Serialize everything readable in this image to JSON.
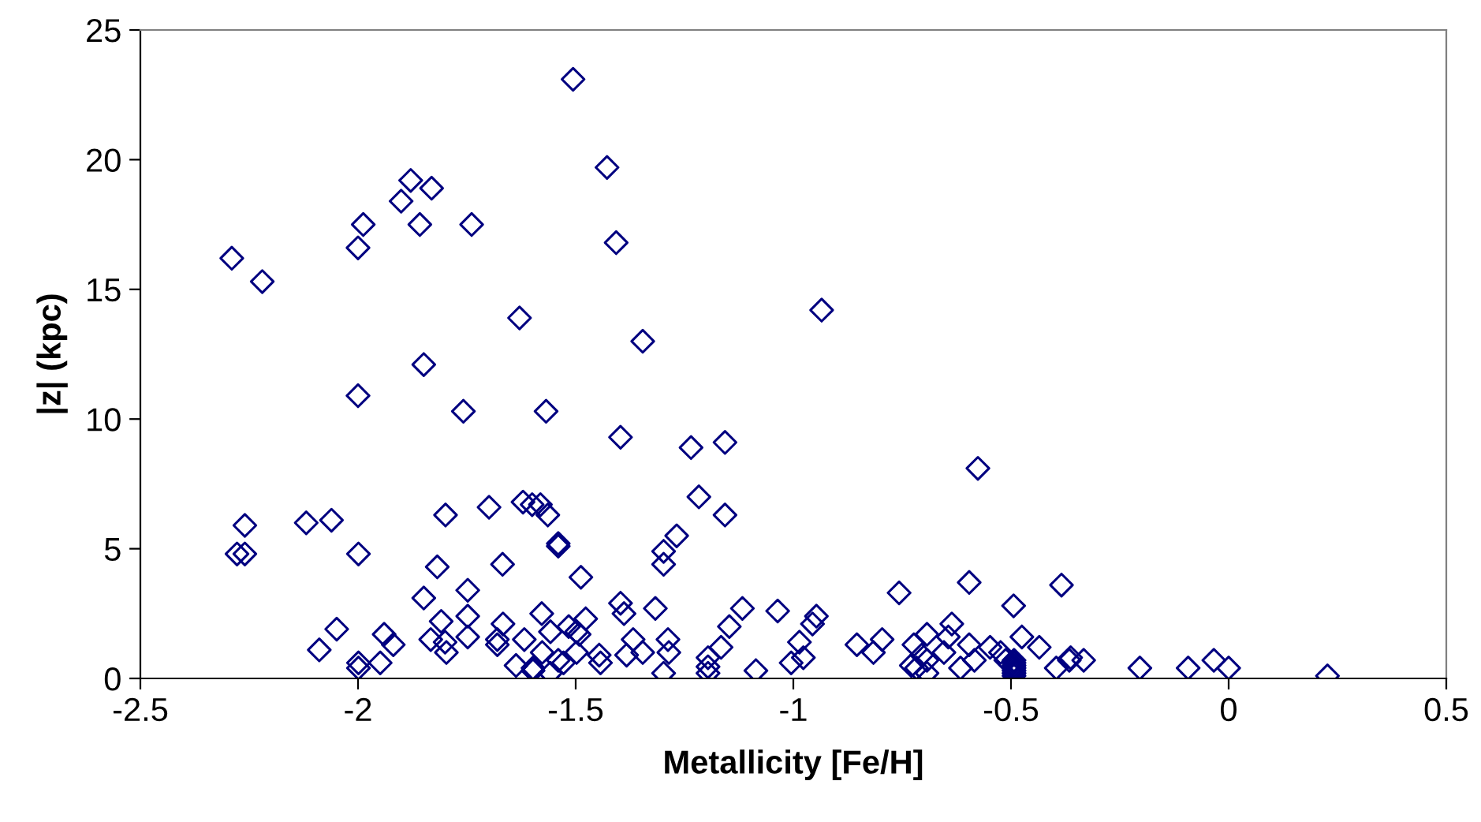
{
  "chart_data": {
    "type": "scatter",
    "xlabel": "Metallicity [Fe/H]",
    "ylabel": "|z| (kpc)",
    "xlim": [
      -2.5,
      0.5
    ],
    "xticks": [
      -2.5,
      -2,
      -1.5,
      -1,
      -0.5,
      0,
      0.5
    ],
    "ylim": [
      0,
      25
    ],
    "yticks": [
      0,
      5,
      10,
      15,
      20,
      25
    ],
    "grid": false,
    "marker": "diamond",
    "series": [
      {
        "color": "#000080",
        "x": [
          -1.506,
          -1.428,
          -1.407,
          -1.879,
          -1.831,
          -1.901,
          -1.988,
          -1.858,
          -1.739,
          -2.0,
          -2.29,
          -2.22,
          -1.629,
          -1.346,
          -1.849,
          -2.0,
          -1.758,
          -1.568,
          -1.397,
          -0.935,
          -1.235,
          -1.157,
          -2.26,
          -2.278,
          -2.26,
          -2.119,
          -2.061,
          -1.999,
          -1.799,
          -1.699,
          -1.621,
          -1.6,
          -1.581,
          -1.564,
          -1.54,
          -1.54,
          -1.818,
          -1.668,
          -1.488,
          -1.849,
          -1.748,
          -1.397,
          -1.389,
          -1.809,
          -1.748,
          -1.578,
          -1.477,
          -1.667,
          -2.049,
          -2.089,
          -1.94,
          -1.919,
          -1.833,
          -1.8,
          -1.797,
          -1.748,
          -1.68,
          -1.68,
          -1.618,
          -1.558,
          -1.516,
          -1.498,
          -1.492,
          -1.577,
          -1.54,
          -1.498,
          -1.446,
          -1.443,
          -1.383,
          -1.999,
          -1.999,
          -1.949,
          -1.637,
          -1.598,
          -1.598,
          -1.558,
          -1.528,
          -0.576,
          -1.217,
          -1.157,
          -1.268,
          -1.298,
          -1.298,
          -0.757,
          -0.596,
          -0.384,
          -1.317,
          -1.117,
          -1.036,
          -0.947,
          -0.956,
          -1.147,
          -1.166,
          -1.196,
          -1.196,
          -1.196,
          -1.086,
          -0.986,
          -1.005,
          -0.977,
          -1.368,
          -1.346,
          -1.288,
          -1.286,
          -1.298,
          -0.854,
          -0.816,
          -0.796,
          -0.723,
          -0.693,
          -0.636,
          -0.644,
          -0.654,
          -0.596,
          -0.584,
          -0.616,
          -0.729,
          -0.693,
          -0.693,
          -0.705,
          -0.717,
          -0.548,
          -0.524,
          -0.494,
          -0.475,
          -0.435,
          -0.396,
          -0.366,
          -0.493,
          -0.493,
          -0.493,
          -0.493,
          -0.493,
          -0.493,
          -0.493,
          -0.512,
          -0.363,
          -0.333,
          -0.204,
          -0.093,
          -0.034,
          0.0,
          0.227
        ],
        "values": [
          23.1,
          19.7,
          16.8,
          19.2,
          18.9,
          18.4,
          17.5,
          17.5,
          17.5,
          16.6,
          16.2,
          15.3,
          13.9,
          13.0,
          12.1,
          10.9,
          10.3,
          10.3,
          9.3,
          14.2,
          8.9,
          9.1,
          5.9,
          4.8,
          4.8,
          6.0,
          6.1,
          4.8,
          6.3,
          6.6,
          6.8,
          6.7,
          6.7,
          6.3,
          5.2,
          5.1,
          4.3,
          4.4,
          3.9,
          3.1,
          3.4,
          2.9,
          2.5,
          2.2,
          2.4,
          2.5,
          2.3,
          2.1,
          1.9,
          1.1,
          1.7,
          1.3,
          1.5,
          1.4,
          1.0,
          1.6,
          1.5,
          1.3,
          1.5,
          1.8,
          2.0,
          1.8,
          1.7,
          1.0,
          0.7,
          1.0,
          0.9,
          0.6,
          0.9,
          0.6,
          0.4,
          0.6,
          0.5,
          0.4,
          0.3,
          0.2,
          0.6,
          8.1,
          7.0,
          6.3,
          5.5,
          4.9,
          4.4,
          3.3,
          3.7,
          3.6,
          2.7,
          2.7,
          2.6,
          2.4,
          2.1,
          2.0,
          1.2,
          0.8,
          0.2,
          0.45,
          0.3,
          1.4,
          0.6,
          0.8,
          1.5,
          1.0,
          1.5,
          1.0,
          0.2,
          1.3,
          1.0,
          1.5,
          1.3,
          1.7,
          2.1,
          1.6,
          1.0,
          1.3,
          0.7,
          0.4,
          0.5,
          0.7,
          0.2,
          0.9,
          0.4,
          1.2,
          1.0,
          2.8,
          1.6,
          1.2,
          0.4,
          0.7,
          0.1,
          0.2,
          0.3,
          0.4,
          0.5,
          0.6,
          0.7,
          0.7,
          0.8,
          0.7,
          0.4,
          0.4,
          0.7,
          0.4,
          0.1
        ]
      }
    ]
  }
}
